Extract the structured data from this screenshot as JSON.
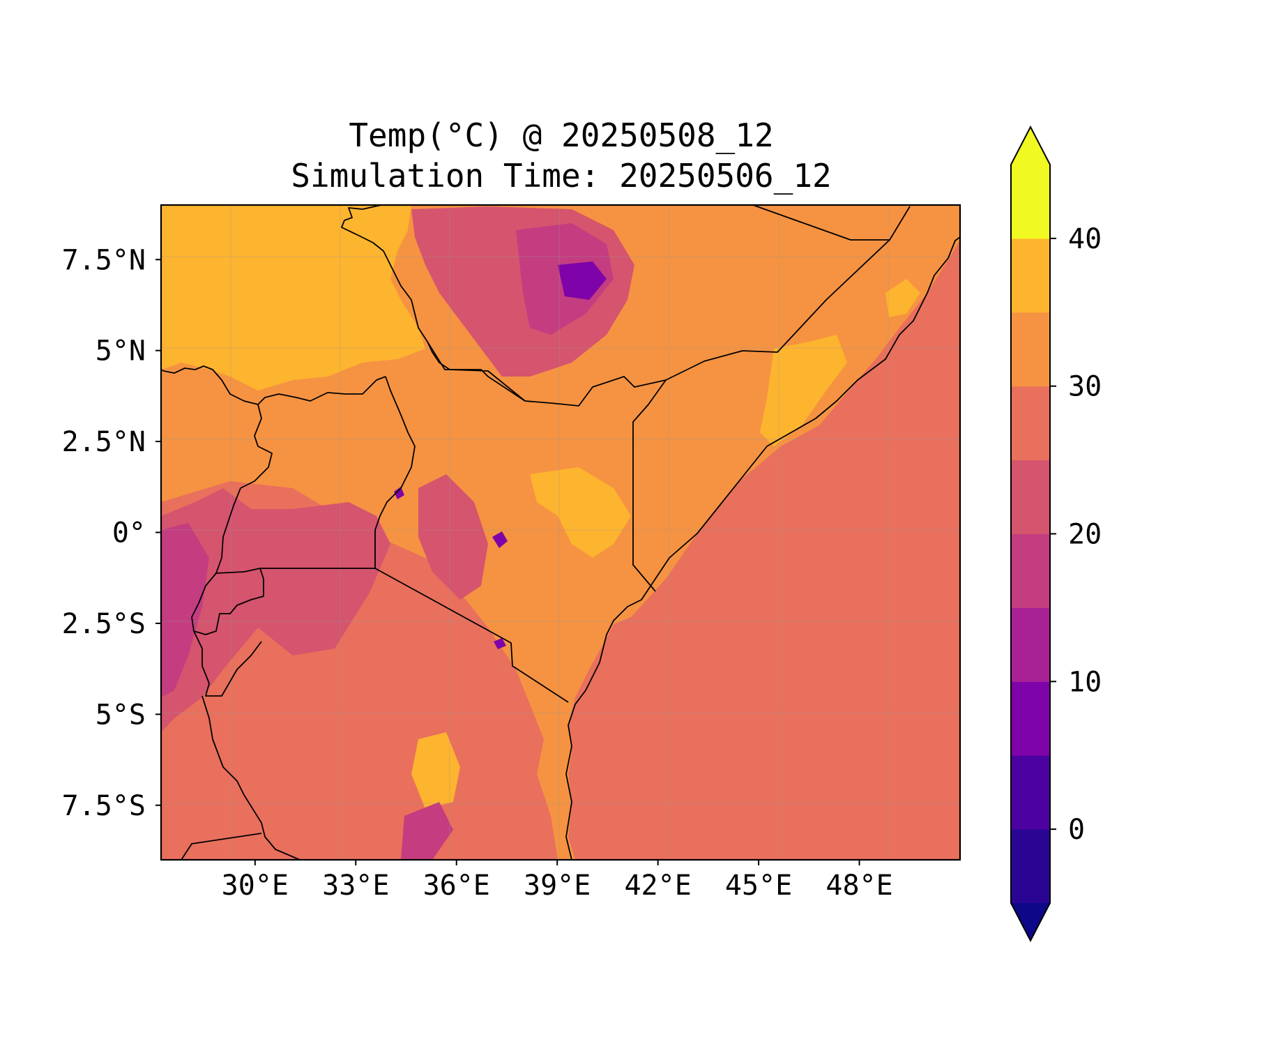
{
  "title_line1": "Temp(°C) @ 20250508_12",
  "title_line2": "Simulation Time: 20250506_12",
  "map": {
    "lon_range": [
      27.2,
      51.0
    ],
    "lat_range": [
      -9.0,
      9.0
    ],
    "x_ticks": [
      {
        "lon": 30,
        "label": "30°E"
      },
      {
        "lon": 33,
        "label": "33°E"
      },
      {
        "lon": 36,
        "label": "36°E"
      },
      {
        "lon": 39,
        "label": "39°E"
      },
      {
        "lon": 42,
        "label": "42°E"
      },
      {
        "lon": 45,
        "label": "45°E"
      },
      {
        "lon": 48,
        "label": "48°E"
      }
    ],
    "y_ticks": [
      {
        "lat": 7.5,
        "label": "7.5°N"
      },
      {
        "lat": 5,
        "label": "5°N"
      },
      {
        "lat": 2.5,
        "label": "2.5°N"
      },
      {
        "lat": 0,
        "label": "0°"
      },
      {
        "lat": -2.5,
        "label": "2.5°S"
      },
      {
        "lat": -5,
        "label": "5°S"
      },
      {
        "lat": -7.5,
        "label": "7.5°S"
      }
    ],
    "gridlines": true
  },
  "colorbar": {
    "levels": [
      -5,
      0,
      5,
      10,
      15,
      20,
      25,
      30,
      35,
      40,
      45
    ],
    "extend": "both",
    "colors": [
      "#0d0887",
      "#2a0593",
      "#4c02a1",
      "#7e03a8",
      "#a82296",
      "#c33d80",
      "#d5546e",
      "#e8705c",
      "#f59342",
      "#fdb42f",
      "#f0f921"
    ],
    "over_color": "#f0f921",
    "under_color": "#0d0887",
    "ticks": [
      {
        "value": 0,
        "label": "0"
      },
      {
        "value": 10,
        "label": "10"
      },
      {
        "value": 20,
        "label": "20"
      },
      {
        "value": 30,
        "label": "30"
      },
      {
        "value": 40,
        "label": "40"
      }
    ]
  }
}
